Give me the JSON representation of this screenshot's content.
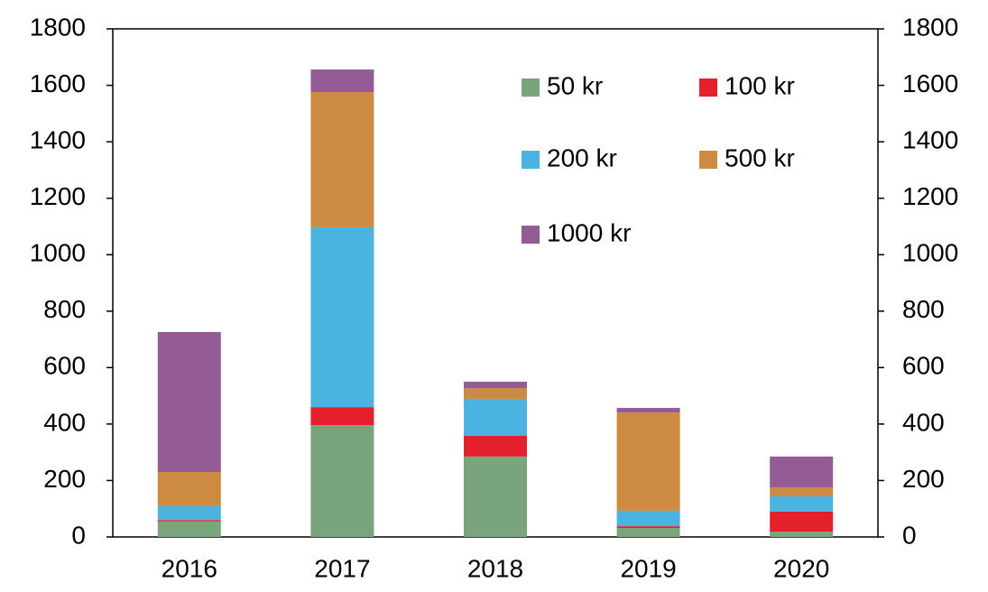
{
  "chart_data": {
    "type": "stacked_bar",
    "categories": [
      "2016",
      "2017",
      "2018",
      "2019",
      "2020"
    ],
    "series": [
      {
        "name": "50 kr",
        "color": "#7aa57a",
        "values": [
          55,
          396,
          285,
          32,
          19
        ]
      },
      {
        "name": "100 kr",
        "color": "#e3202b",
        "values": [
          5,
          64,
          73,
          6,
          71
        ]
      },
      {
        "name": "200 kr",
        "color": "#4ab3e0",
        "values": [
          50,
          637,
          131,
          55,
          54
        ]
      },
      {
        "name": "500 kr",
        "color": "#cc8b40",
        "values": [
          120,
          479,
          38,
          348,
          32
        ]
      },
      {
        "name": "1000 kr",
        "color": "#955b96",
        "values": [
          496,
          80,
          23,
          16,
          109
        ]
      }
    ],
    "ylim": [
      0,
      1800
    ],
    "yticks": [
      0,
      200,
      400,
      600,
      800,
      1000,
      1200,
      1400,
      1600,
      1800
    ],
    "y2lim": [
      0,
      1800
    ],
    "y2ticks": [
      0,
      200,
      400,
      600,
      800,
      1000,
      1200,
      1400,
      1600,
      1800
    ]
  }
}
